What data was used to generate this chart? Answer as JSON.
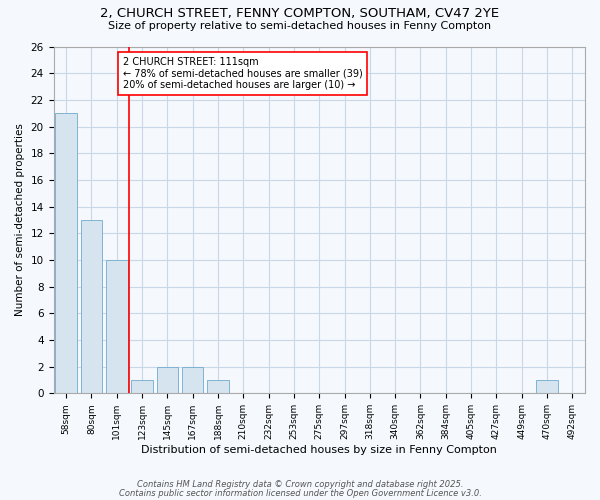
{
  "title1": "2, CHURCH STREET, FENNY COMPTON, SOUTHAM, CV47 2YE",
  "title2": "Size of property relative to semi-detached houses in Fenny Compton",
  "xlabel": "Distribution of semi-detached houses by size in Fenny Compton",
  "ylabel": "Number of semi-detached properties",
  "categories": [
    "58sqm",
    "80sqm",
    "101sqm",
    "123sqm",
    "145sqm",
    "167sqm",
    "188sqm",
    "210sqm",
    "232sqm",
    "253sqm",
    "275sqm",
    "297sqm",
    "318sqm",
    "340sqm",
    "362sqm",
    "384sqm",
    "405sqm",
    "427sqm",
    "449sqm",
    "470sqm",
    "492sqm"
  ],
  "values": [
    21,
    13,
    10,
    1,
    2,
    2,
    1,
    0,
    0,
    0,
    0,
    0,
    0,
    0,
    0,
    0,
    0,
    0,
    0,
    1,
    0
  ],
  "bar_color": "#d6e4f0",
  "bar_edge_color": "#7fb3d3",
  "red_line_x": 2.5,
  "annotation_text": "2 CHURCH STREET: 111sqm\n← 78% of semi-detached houses are smaller (39)\n20% of semi-detached houses are larger (10) →",
  "ylim": [
    0,
    26
  ],
  "yticks": [
    0,
    2,
    4,
    6,
    8,
    10,
    12,
    14,
    16,
    18,
    20,
    22,
    24,
    26
  ],
  "footer1": "Contains HM Land Registry data © Crown copyright and database right 2025.",
  "footer2": "Contains public sector information licensed under the Open Government Licence v3.0.",
  "bg_color": "#f5f8fc",
  "grid_color": "#c8d8e8"
}
